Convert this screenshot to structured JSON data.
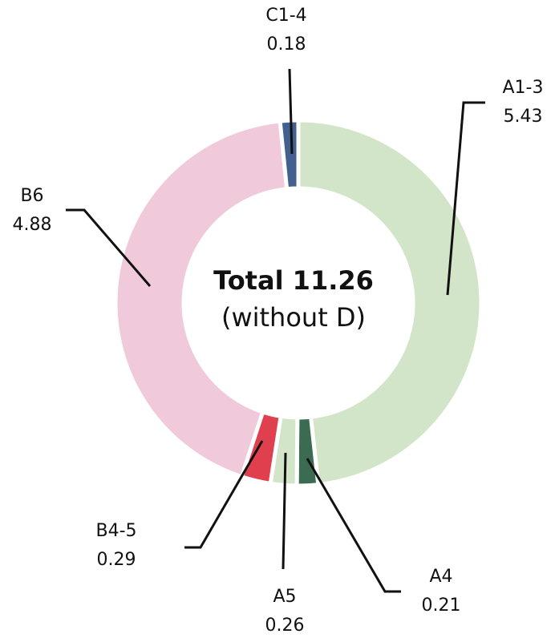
{
  "chart_data": {
    "type": "donut",
    "center_title": "Total 11.26",
    "center_subtitle": "(without D)",
    "categories": [
      "A1-3",
      "A4",
      "A5",
      "B4-5",
      "B6",
      "C1-4"
    ],
    "values": [
      5.43,
      0.21,
      0.26,
      0.29,
      4.88,
      0.18
    ],
    "colors": [
      "#d3e5c8",
      "#3b6b50",
      "#d3e5c8",
      "#e0404e",
      "#f0c9da",
      "#43608f"
    ]
  }
}
